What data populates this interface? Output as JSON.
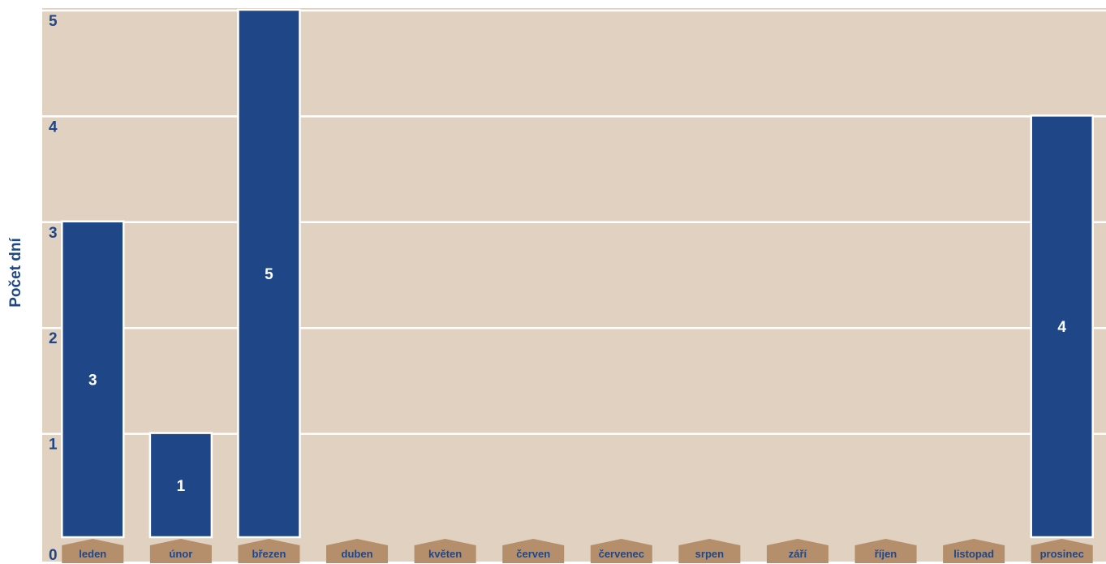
{
  "chart_data": {
    "type": "bar",
    "title": "",
    "xlabel": "",
    "ylabel": "Počet dní",
    "categories": [
      "leden",
      "únor",
      "březen",
      "duben",
      "květen",
      "červen",
      "červenec",
      "srpen",
      "září",
      "říjen",
      "listopad",
      "prosinec"
    ],
    "values": [
      3,
      1,
      5,
      0,
      0,
      0,
      0,
      0,
      0,
      0,
      0,
      4
    ],
    "data_labels": [
      "3",
      "1",
      "5",
      "",
      "",
      "",
      "",
      "",
      "",
      "",
      "",
      "4"
    ],
    "ylim": [
      0,
      5
    ],
    "yticks": [
      "0",
      "1",
      "2",
      "3",
      "4",
      "5"
    ],
    "grid": true,
    "legend": "none",
    "colors": {
      "bar": "#1f4788",
      "plot_background": "#e0d1c0",
      "category_tab": "#b58e6b",
      "text": "#1f4788",
      "bar_label": "#ffffff"
    }
  }
}
